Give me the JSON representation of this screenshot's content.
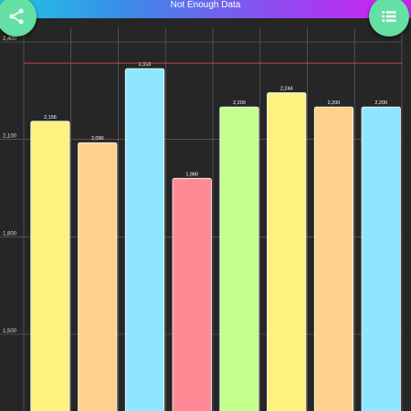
{
  "header": {
    "title": "Not Enough Data",
    "share_icon": "share-icon",
    "list_icon": "list-icon"
  },
  "colors": {
    "fab": "#64e0a5",
    "limit_line": "#b84a4a",
    "grid": "#6a6a6a"
  },
  "chart_data": {
    "type": "bar",
    "categories": [
      "",
      "",
      "",
      "",
      "",
      "",
      "",
      ""
    ],
    "values": [
      2156,
      2090,
      2318,
      1980,
      2200,
      2244,
      2200,
      2200
    ],
    "value_labels": [
      "2,156",
      "2,090",
      "2,318",
      "1,980",
      "2,200",
      "2,244",
      "2,200",
      "2,200"
    ],
    "bar_colors": [
      "#fff281",
      "#ffd18a",
      "#8ee6ff",
      "#ff8a96",
      "#c2ff8c",
      "#fff281",
      "#ffd18a",
      "#8ee6ff"
    ],
    "yticks": [
      1500,
      1800,
      2100,
      2400
    ],
    "ytick_labels": [
      "1,500",
      "1,800",
      "2,100",
      "2,400"
    ],
    "ylim": [
      1270,
      2400
    ],
    "limit_line": 2335,
    "grid": true,
    "title": "",
    "xlabel": "",
    "ylabel": ""
  }
}
